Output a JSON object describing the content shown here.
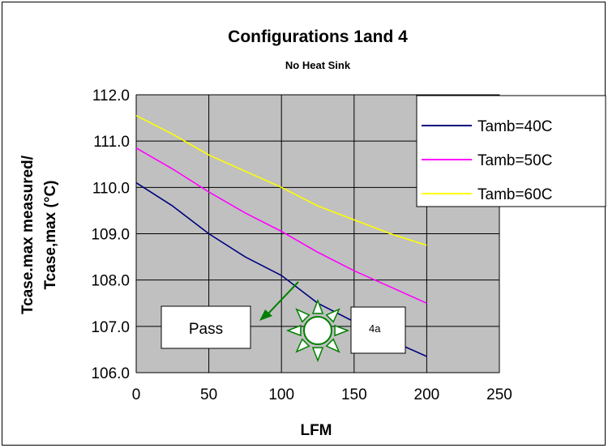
{
  "chart_data": {
    "type": "line",
    "title": "Configurations 1and 4",
    "subtitle": "No Heat Sink",
    "xlabel": "LFM",
    "ylabel_lines": [
      "Tcase.max measured/",
      "Tcase,max (°C)"
    ],
    "xlim": [
      0,
      250
    ],
    "ylim": [
      106.0,
      112.0
    ],
    "x_ticks": [
      "0",
      "50",
      "100",
      "150",
      "200",
      "250"
    ],
    "y_ticks": [
      "106.0",
      "107.0",
      "108.0",
      "109.0",
      "110.0",
      "111.0",
      "112.0"
    ],
    "grid": true,
    "legend_position": "top-right",
    "x": [
      0,
      25,
      50,
      75,
      100,
      125,
      150,
      175,
      200
    ],
    "series": [
      {
        "name": "Tamb=40C",
        "color": "#00007f",
        "values": [
          110.1,
          109.6,
          109.0,
          108.5,
          108.1,
          107.5,
          107.1,
          106.7,
          106.35
        ]
      },
      {
        "name": "Tamb=50C",
        "color": "#ff00ff",
        "values": [
          110.85,
          110.4,
          109.9,
          109.45,
          109.05,
          108.6,
          108.2,
          107.85,
          107.5
        ]
      },
      {
        "name": "Tamb=60C",
        "color": "#ffff00",
        "values": [
          111.55,
          111.15,
          110.7,
          110.35,
          110.0,
          109.6,
          109.3,
          109.0,
          108.75
        ]
      }
    ],
    "annotations": {
      "pass_label": "Pass",
      "tag_label": "4a"
    },
    "colors": {
      "plot_background": "#c0c0c0",
      "arrow": "#008000",
      "sun": "#008000"
    }
  }
}
